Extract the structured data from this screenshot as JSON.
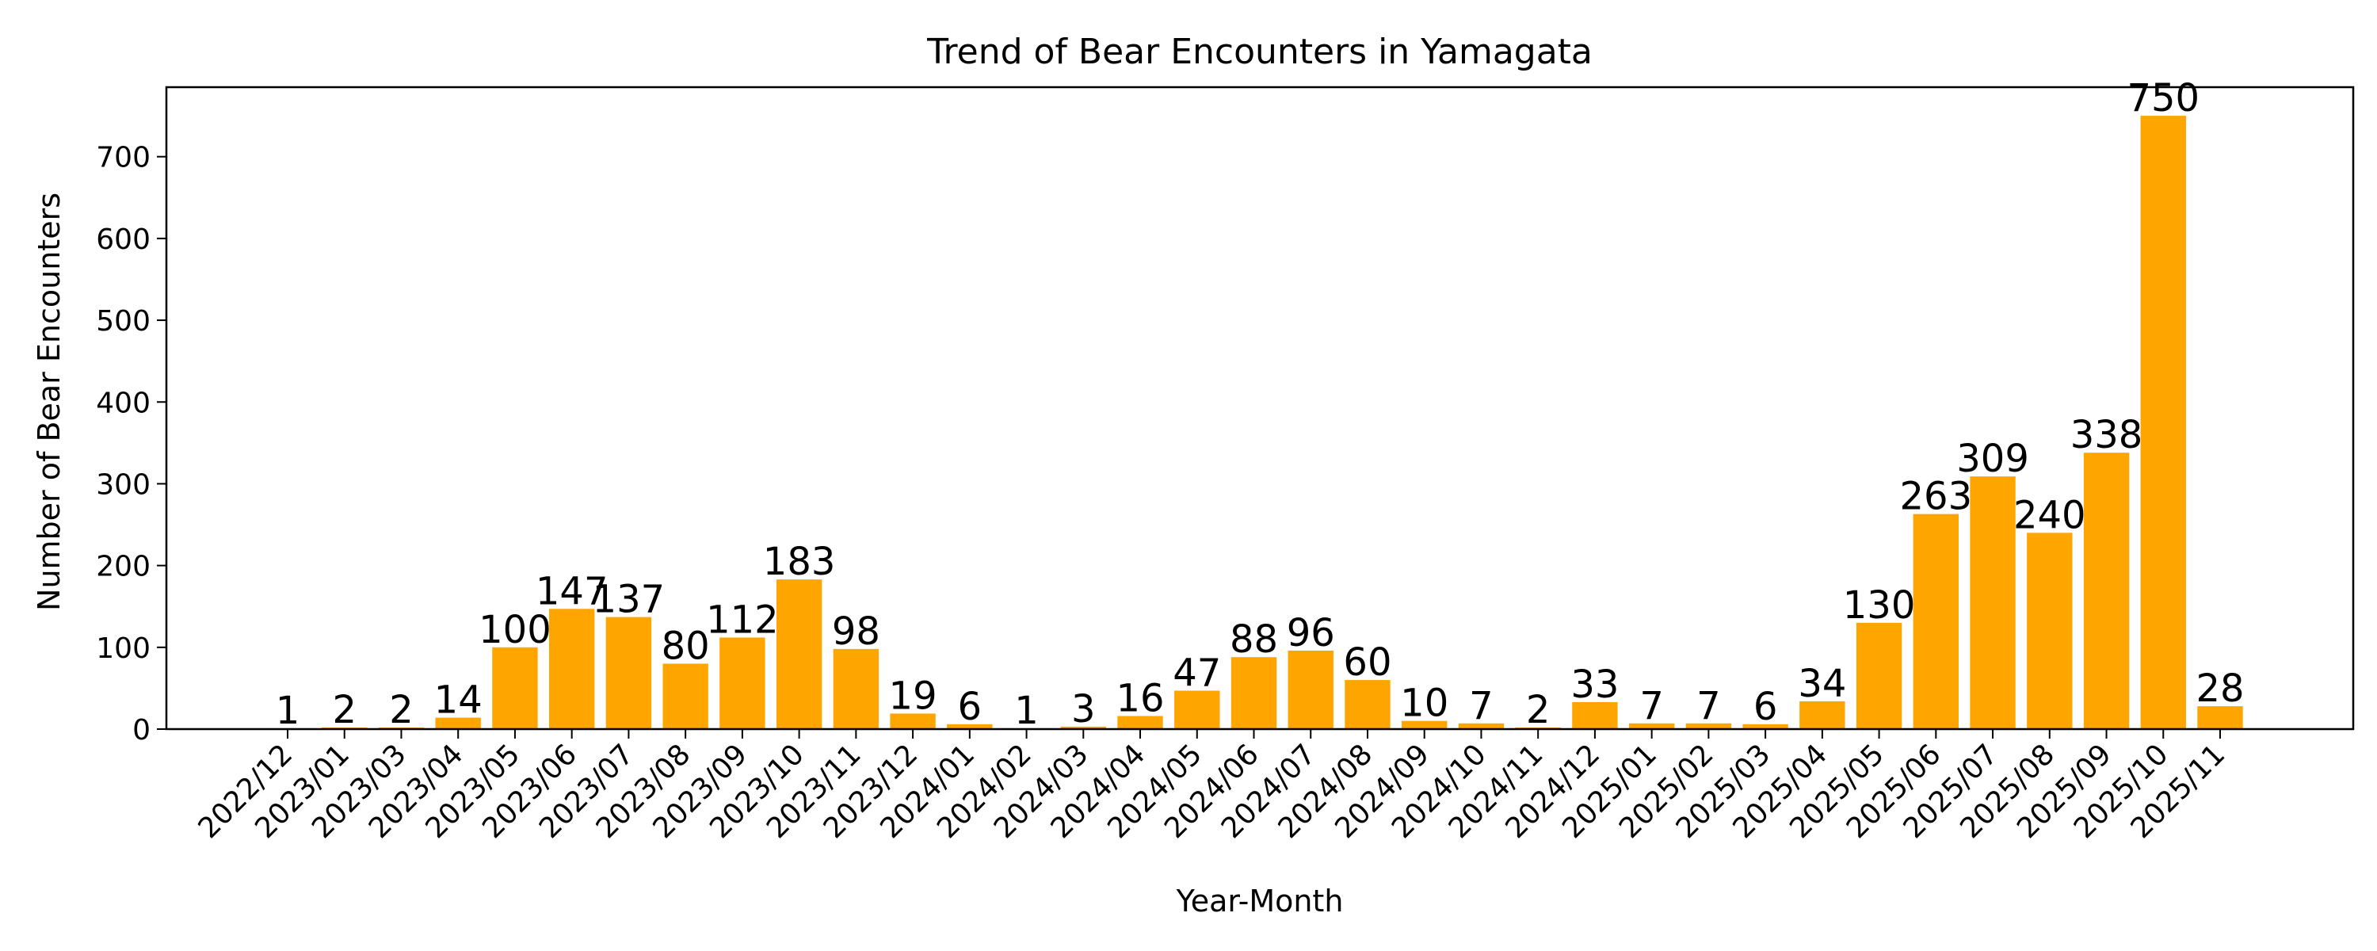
{
  "chart_data": {
    "type": "bar",
    "title": "Trend of Bear Encounters in Yamagata",
    "xlabel": "Year-Month",
    "ylabel": "Number of Bear Encounters",
    "ylim": [
      0,
      785
    ],
    "yticks": [
      0,
      100,
      200,
      300,
      400,
      500,
      600,
      700
    ],
    "grid": false,
    "bar_color": "#FFA500",
    "categories": [
      "2022/12",
      "2023/01",
      "2023/03",
      "2023/04",
      "2023/05",
      "2023/06",
      "2023/07",
      "2023/08",
      "2023/09",
      "2023/10",
      "2023/11",
      "2023/12",
      "2024/01",
      "2024/02",
      "2024/03",
      "2024/04",
      "2024/05",
      "2024/06",
      "2024/07",
      "2024/08",
      "2024/09",
      "2024/10",
      "2024/11",
      "2024/12",
      "2025/01",
      "2025/02",
      "2025/03",
      "2025/04",
      "2025/05",
      "2025/06",
      "2025/07",
      "2025/08",
      "2025/09",
      "2025/10",
      "2025/11"
    ],
    "values": [
      1,
      2,
      2,
      14,
      100,
      147,
      137,
      80,
      112,
      183,
      98,
      19,
      6,
      1,
      3,
      16,
      47,
      88,
      96,
      60,
      10,
      7,
      2,
      33,
      7,
      7,
      6,
      34,
      130,
      263,
      309,
      240,
      338,
      750,
      28
    ]
  }
}
